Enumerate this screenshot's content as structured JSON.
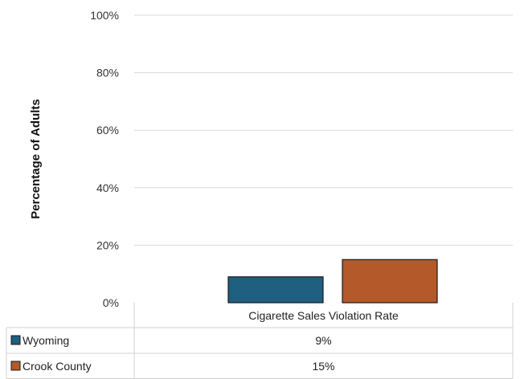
{
  "chart_data": {
    "type": "bar",
    "ylabel": "Percentage of Adults",
    "xlabel": "",
    "ylim": [
      0,
      100
    ],
    "yticks": [
      "0%",
      "20%",
      "40%",
      "60%",
      "80%",
      "100%"
    ],
    "categories": [
      "Cigarette Sales Violation Rate"
    ],
    "series": [
      {
        "name": "Wyoming",
        "values": [
          9
        ],
        "color": "#1f5f7f",
        "value_label": "9%"
      },
      {
        "name": "Crook County",
        "values": [
          15
        ],
        "color": "#b3592a",
        "value_label": "15%"
      }
    ],
    "grid": true,
    "legend": "data-table-below"
  }
}
